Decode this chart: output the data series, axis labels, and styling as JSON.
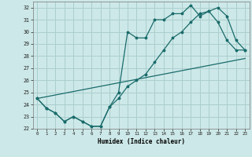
{
  "xlabel": "Humidex (Indice chaleur)",
  "bg_color": "#cde8e8",
  "grid_color": "#aacece",
  "line_color": "#1a6b6b",
  "xlim": [
    -0.5,
    23.5
  ],
  "ylim": [
    22,
    32.5
  ],
  "xticks": [
    0,
    1,
    2,
    3,
    4,
    5,
    6,
    7,
    8,
    9,
    10,
    11,
    12,
    13,
    14,
    15,
    16,
    17,
    18,
    19,
    20,
    21,
    22,
    23
  ],
  "yticks": [
    22,
    23,
    24,
    25,
    26,
    27,
    28,
    29,
    30,
    31,
    32
  ],
  "line1_x": [
    0,
    1,
    2,
    3,
    4,
    5,
    6,
    7,
    8,
    9,
    10,
    11,
    12,
    13,
    14,
    15,
    16,
    17,
    18,
    19,
    20,
    21,
    22,
    23
  ],
  "line1_y": [
    24.5,
    23.7,
    23.3,
    22.6,
    23.0,
    22.6,
    22.2,
    22.2,
    23.8,
    25.0,
    30.0,
    29.5,
    29.5,
    31.0,
    31.0,
    31.5,
    31.5,
    32.2,
    31.3,
    31.7,
    30.8,
    29.3,
    28.5,
    28.5
  ],
  "line2_x": [
    0,
    1,
    2,
    3,
    4,
    5,
    6,
    7,
    8,
    9,
    10,
    11,
    12,
    13,
    14,
    15,
    16,
    17,
    18,
    19,
    20,
    21,
    22,
    23
  ],
  "line2_y": [
    24.5,
    23.7,
    23.3,
    22.6,
    23.0,
    22.6,
    22.2,
    22.2,
    23.8,
    24.5,
    25.5,
    26.0,
    26.5,
    27.5,
    28.5,
    29.5,
    30.0,
    30.8,
    31.5,
    31.7,
    32.0,
    31.3,
    29.3,
    28.5
  ],
  "line3_x": [
    0,
    23
  ],
  "line3_y": [
    24.5,
    27.8
  ]
}
